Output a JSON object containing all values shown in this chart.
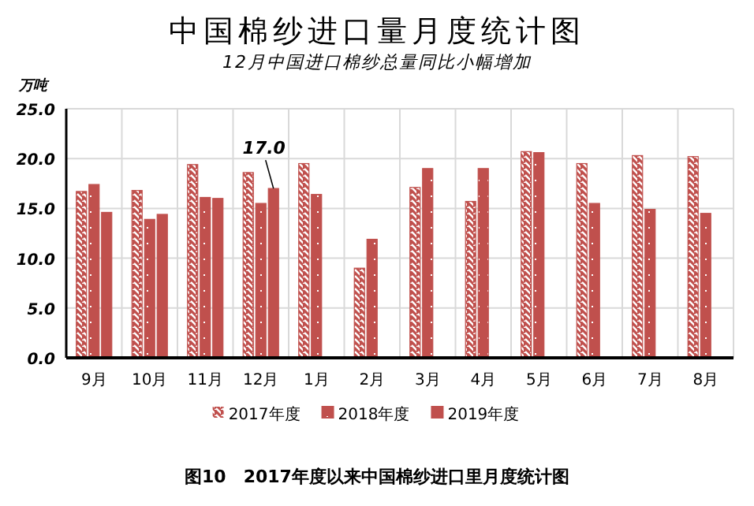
{
  "chart_data": {
    "type": "bar",
    "title": "中国棉纱进口量月度统计图",
    "subtitle": "12月中国进口棉纱总量同比小幅增加",
    "ylabel": "万吨",
    "categories": [
      "9月",
      "10月",
      "11月",
      "12月",
      "1月",
      "2月",
      "3月",
      "4月",
      "5月",
      "6月",
      "7月",
      "8月"
    ],
    "series": [
      {
        "name": "2017年度",
        "color": "#c0504d",
        "values": [
          16.7,
          16.8,
          19.4,
          18.6,
          19.5,
          9.0,
          17.1,
          15.7,
          20.7,
          19.5,
          20.3,
          20.2
        ]
      },
      {
        "name": "2018年度",
        "color": "#c0504d",
        "values": [
          17.4,
          13.9,
          16.1,
          15.5,
          16.4,
          11.9,
          19.0,
          19.0,
          20.6,
          15.5,
          14.9,
          14.5
        ]
      },
      {
        "name": "2019年度",
        "color": "#c0504d",
        "values": [
          14.6,
          14.4,
          16.0,
          17.0,
          null,
          null,
          null,
          null,
          null,
          null,
          null,
          null
        ]
      }
    ],
    "ylim": [
      0,
      25
    ],
    "yticks": [
      {
        "value": 0,
        "label": "0.0"
      },
      {
        "value": 5,
        "label": "5.0"
      },
      {
        "value": 10,
        "label": "10.0"
      },
      {
        "value": 15,
        "label": "15.0"
      },
      {
        "value": 20,
        "label": "20.0"
      },
      {
        "value": 25,
        "label": "25.0"
      }
    ],
    "grid": true,
    "legend": "bottom",
    "annotations": [
      {
        "text": "17.0",
        "x": "12月",
        "y": 17.0
      },
      "图10　2017年度以来中国棉纱进口里月度统计图"
    ]
  }
}
